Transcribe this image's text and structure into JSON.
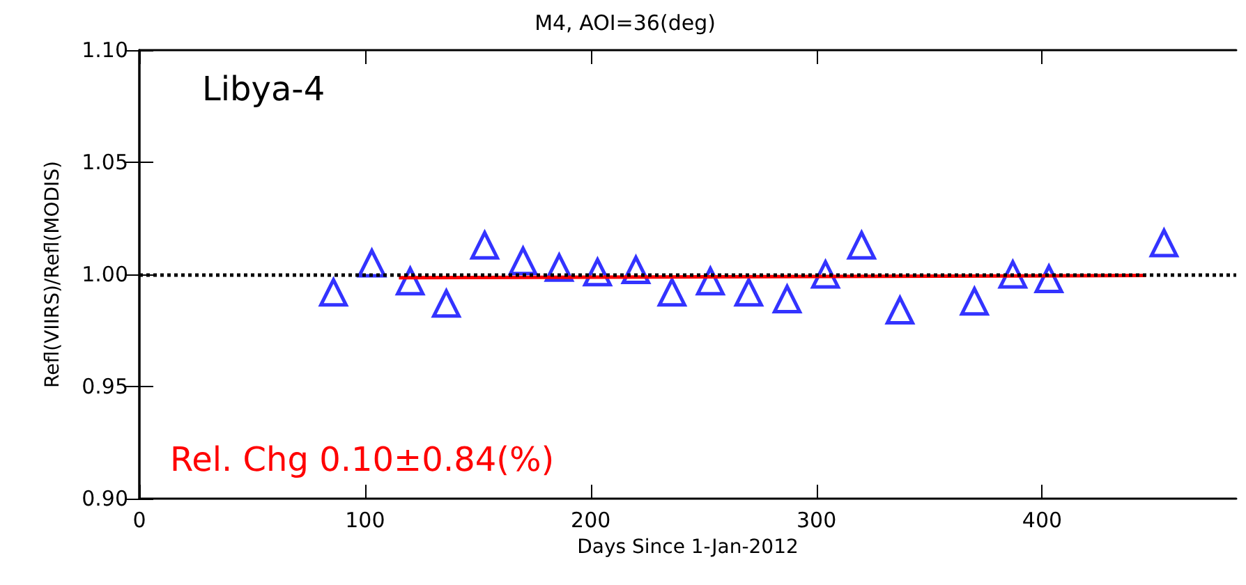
{
  "chart_data": {
    "type": "scatter",
    "title": "M4, AOI=36(deg)",
    "xlabel": "Days Since 1-Jan-2012",
    "ylabel": "Refl(VIIRS)/Refl(MODIS)",
    "annotations": [
      "Libya-4",
      "Rel. Chg 0.10±0.84(%)"
    ],
    "series": [
      {
        "color": "#0000ff",
        "marker": "triangle",
        "x": [
          86,
          103,
          120,
          136,
          153,
          170,
          186,
          203,
          220,
          236,
          253,
          270,
          287,
          304,
          320,
          337,
          370,
          387,
          403,
          454
        ],
        "values": [
          0.992,
          1.005,
          0.997,
          0.987,
          1.013,
          1.006,
          1.003,
          1.001,
          1.002,
          0.992,
          0.997,
          0.992,
          0.989,
          1.0,
          1.013,
          0.984,
          0.988,
          1.0,
          0.998,
          1.014
        ]
      },
      {
        "type": "line",
        "color": "#ff0000",
        "marker": "none",
        "line_style": "solid",
        "x": [
          115,
          446
        ],
        "values": [
          0.9985,
          0.9995
        ]
      }
    ],
    "ref_lines": [
      {
        "axis": "y",
        "value": 1.0,
        "color": "#000000",
        "line_style": "dotted"
      }
    ],
    "xlim": [
      0,
      486
    ],
    "xticks": [
      0,
      100,
      200,
      300,
      400
    ],
    "ylim": [
      0.9,
      1.1
    ],
    "yticks": [
      {
        "value": 0.9,
        "label": "0.90"
      },
      {
        "value": 0.95,
        "label": "0.95"
      },
      {
        "value": 1.0,
        "label": "1.00"
      },
      {
        "value": 1.05,
        "label": "1.05"
      },
      {
        "value": 1.1,
        "label": "1.10"
      }
    ],
    "grid": false
  }
}
